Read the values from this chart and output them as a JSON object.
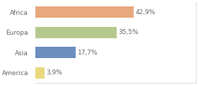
{
  "categories": [
    "Africa",
    "Europa",
    "Asia",
    "America"
  ],
  "values": [
    42.9,
    35.5,
    17.7,
    3.9
  ],
  "labels": [
    "42,9%",
    "35,5%",
    "17,7%",
    "3,9%"
  ],
  "bar_colors": [
    "#e8a97e",
    "#b5c98e",
    "#6b8ebf",
    "#e8d97e"
  ],
  "background_color": "#ffffff",
  "xlim": [
    0,
    70
  ],
  "bar_height": 0.55,
  "label_fontsize": 6.5,
  "tick_fontsize": 6.5,
  "label_color": "#666666",
  "tick_color": "#666666",
  "border_color": "#cccccc"
}
